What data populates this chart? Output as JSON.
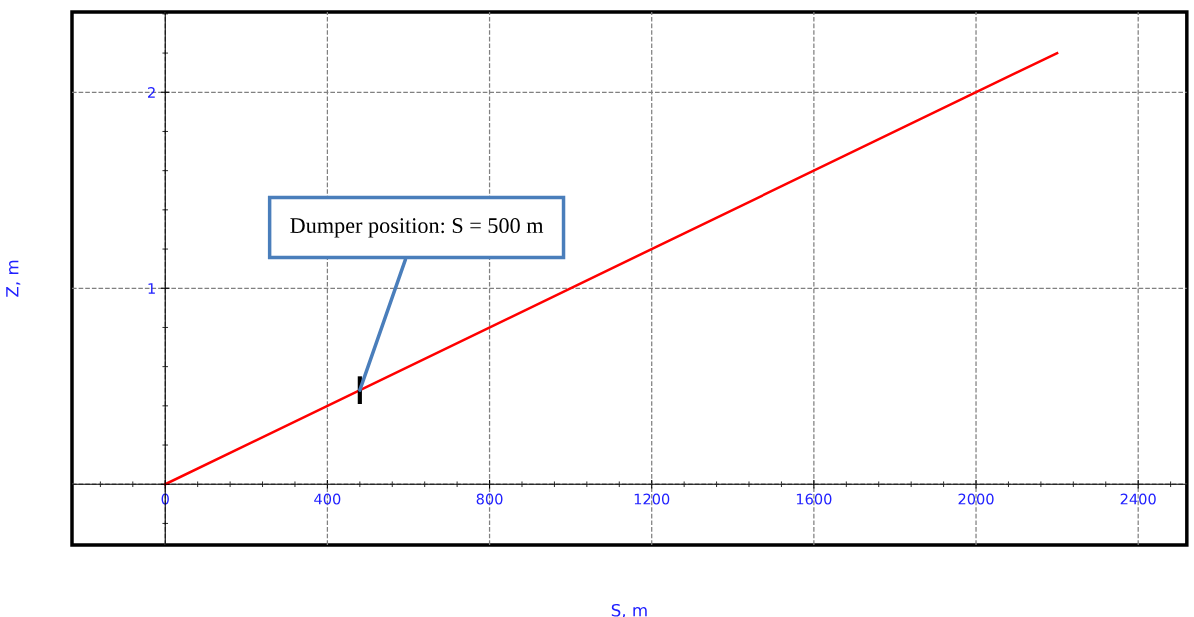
{
  "chart_data": {
    "type": "line",
    "xlabel": "S, m",
    "ylabel": "Z, m",
    "x": [
      0,
      2200
    ],
    "series": [
      {
        "color": "#ff0000",
        "values": [
          0,
          2.2
        ]
      }
    ],
    "xlim": [
      -230,
      2520
    ],
    "ylim": [
      -0.31,
      2.41
    ],
    "xticks": [
      0,
      400,
      800,
      1200,
      1600,
      2000,
      2400
    ],
    "yticks": [
      {
        "value": 0,
        "label": null
      },
      1,
      2
    ],
    "grid": true,
    "legend": false,
    "marker": "none",
    "line_style": "solid",
    "annotations": [
      {
        "text": "Dumper position: S = 500 m",
        "x": 480,
        "y": 0.48
      }
    ]
  }
}
